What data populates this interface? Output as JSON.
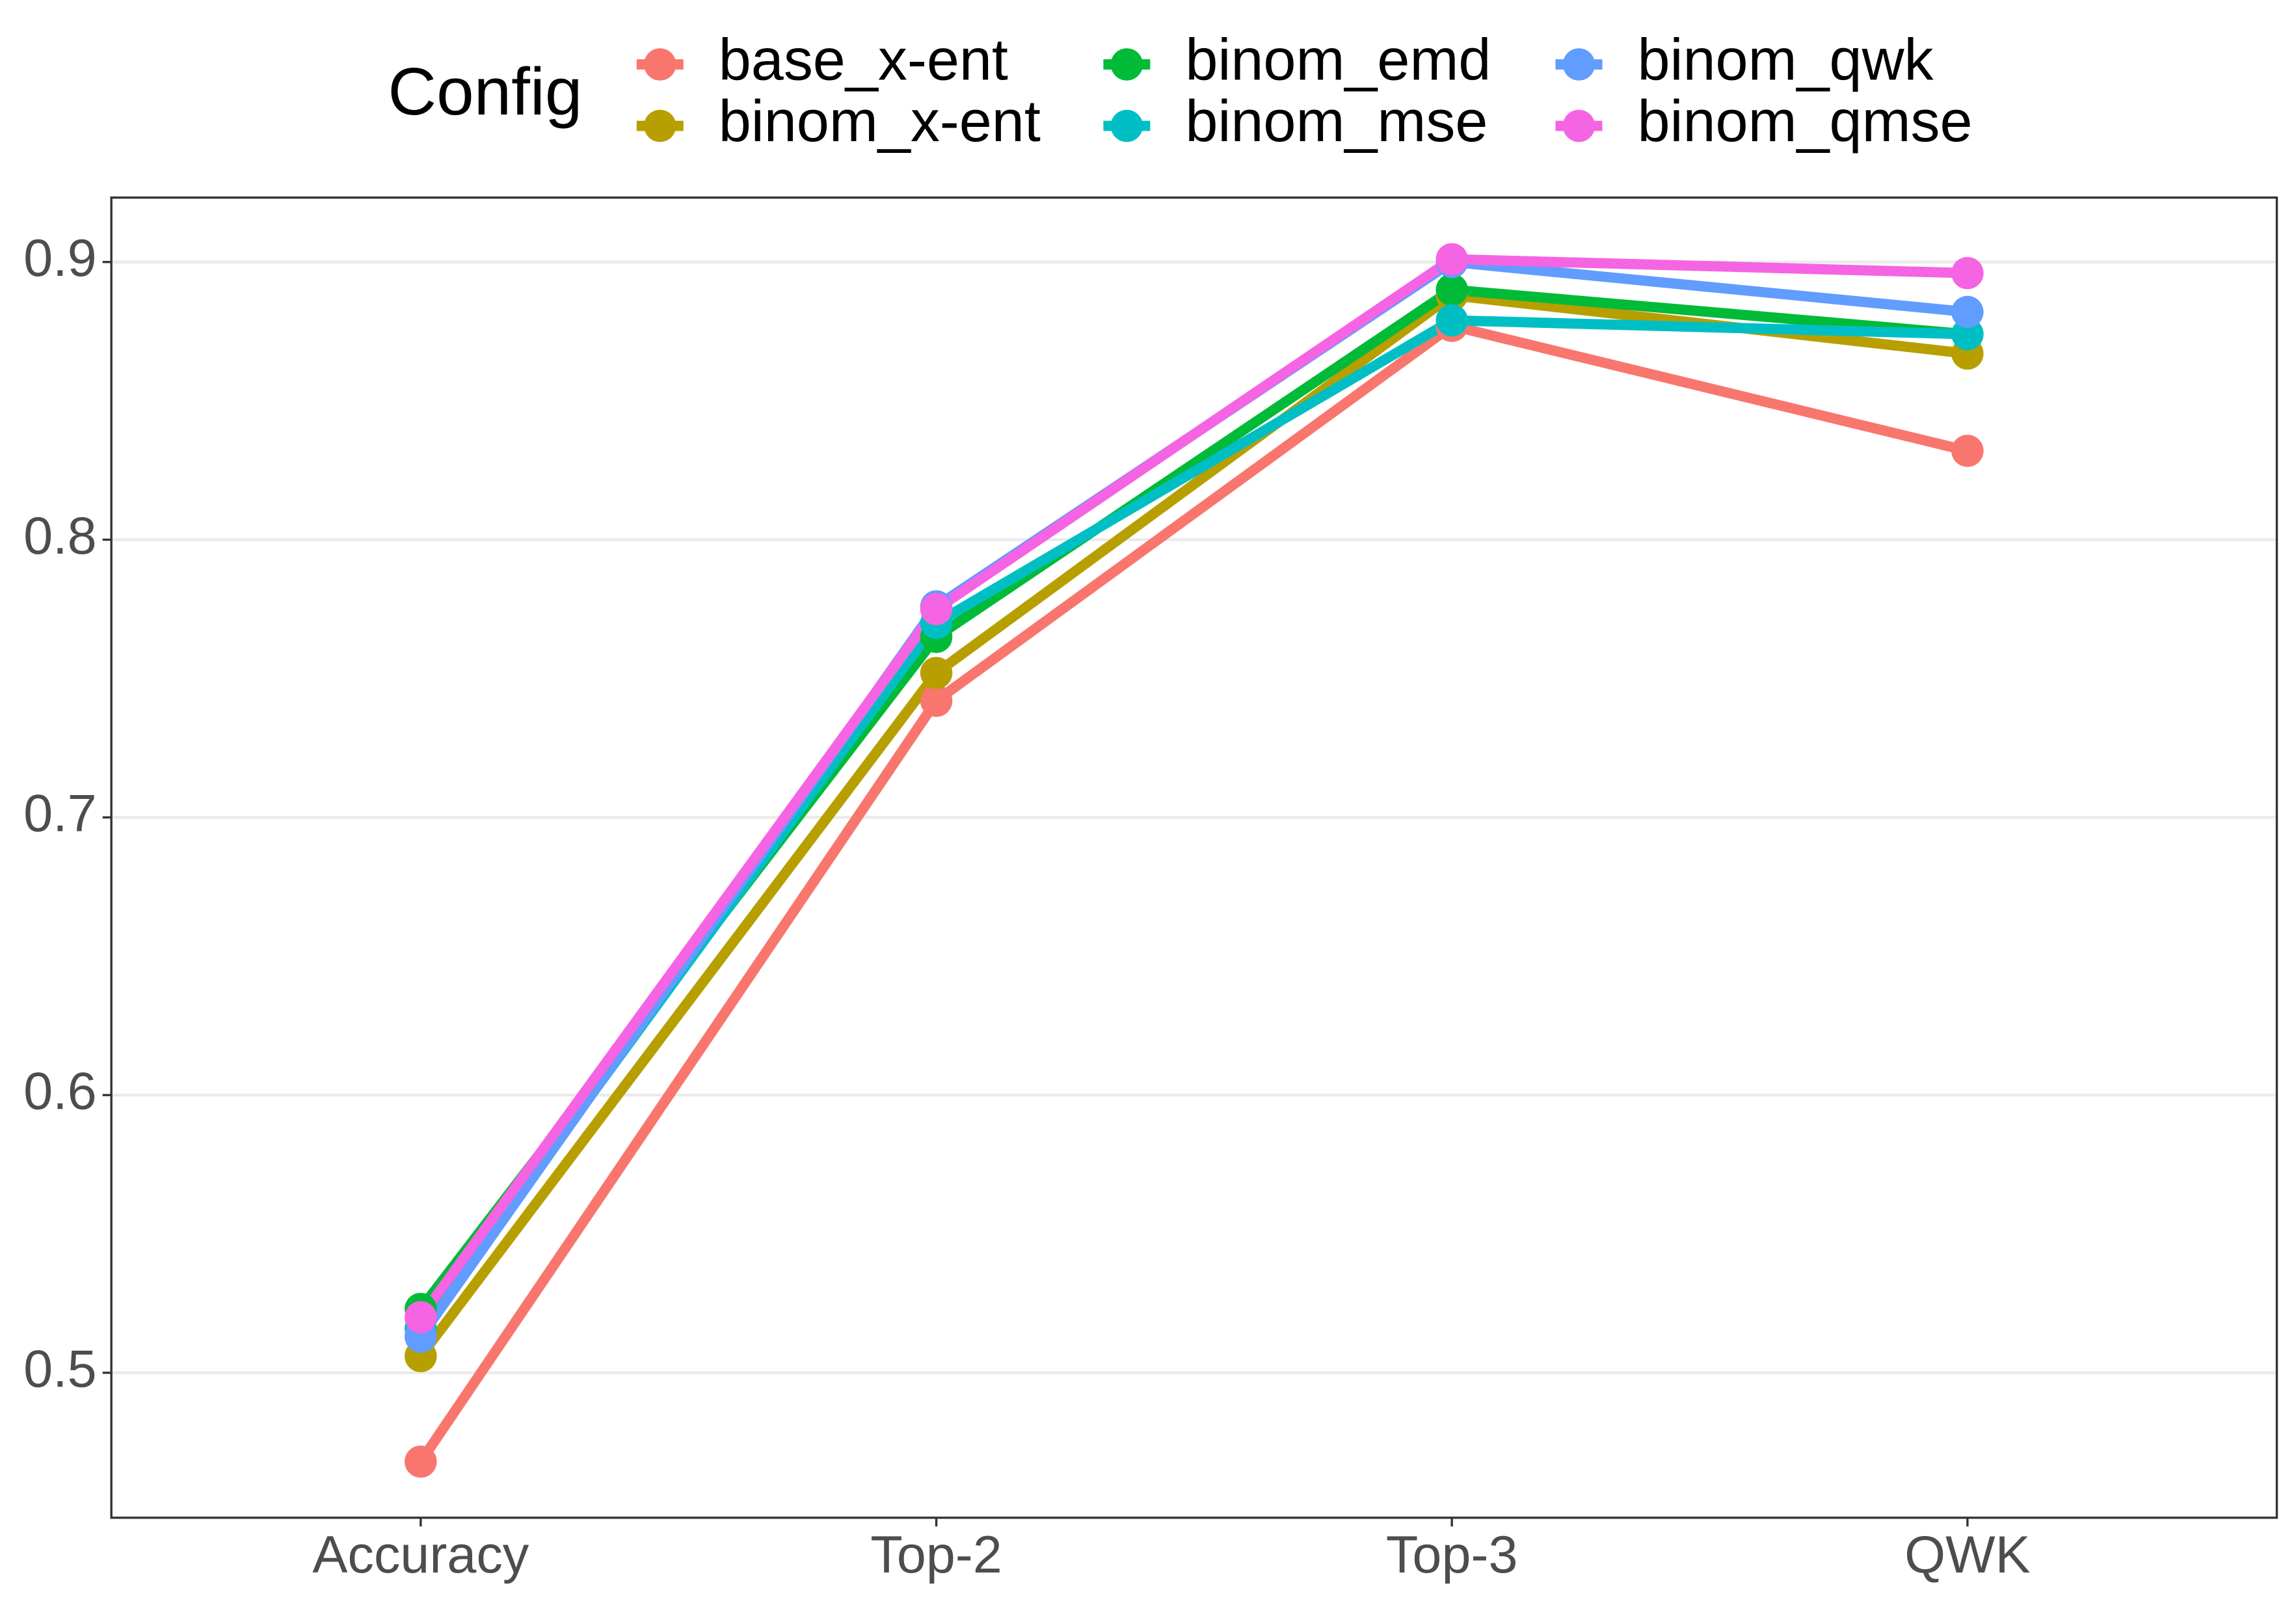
{
  "chart_data": {
    "type": "line",
    "legend_title": "Config",
    "categories": [
      "Accuracy",
      "Top-2",
      "Top-3",
      "QWK"
    ],
    "series": [
      {
        "name": "base_x-ent",
        "color": "#F8766D",
        "values": [
          0.468,
          0.742,
          0.877,
          0.832
        ]
      },
      {
        "name": "binom_x-ent",
        "color": "#B79F00",
        "values": [
          0.506,
          0.752,
          0.888,
          0.867
        ]
      },
      {
        "name": "binom_emd",
        "color": "#00BA38",
        "values": [
          0.523,
          0.765,
          0.89,
          0.874
        ]
      },
      {
        "name": "binom_mse",
        "color": "#00BFC4",
        "values": [
          0.516,
          0.77,
          0.879,
          0.874
        ]
      },
      {
        "name": "binom_qwk",
        "color": "#619CFF",
        "values": [
          0.513,
          0.776,
          0.9,
          0.882
        ]
      },
      {
        "name": "binom_qmse",
        "color": "#F564E3",
        "values": [
          0.52,
          0.775,
          0.901,
          0.896
        ]
      }
    ],
    "ylim": [
      0.4478,
      0.9232
    ],
    "yticks": [
      0.5,
      0.6,
      0.7,
      0.8,
      0.9
    ],
    "grid": true,
    "legend_position": "top"
  }
}
